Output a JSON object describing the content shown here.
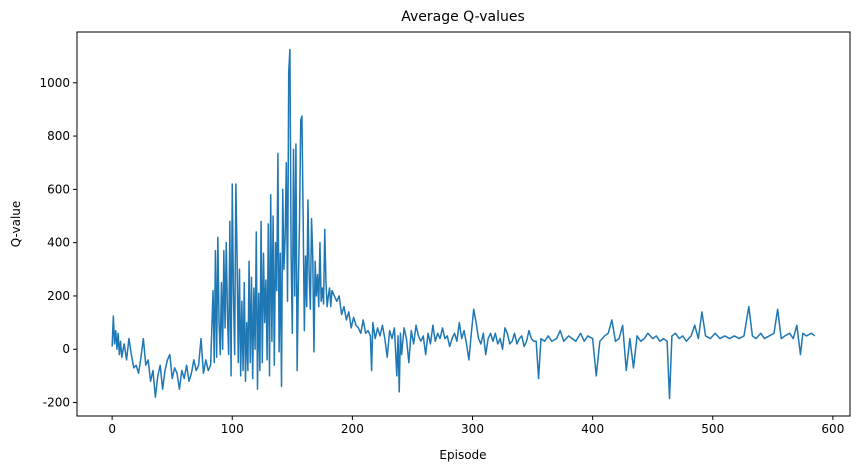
{
  "chart_data": {
    "type": "line",
    "title": "Average Q-values",
    "x_label": "Episode",
    "y_label": "Q-value",
    "x": [
      0,
      1,
      2,
      3,
      4,
      5,
      6,
      7,
      8,
      10,
      12,
      14,
      16,
      18,
      20,
      22,
      24,
      26,
      28,
      30,
      32,
      34,
      36,
      38,
      40,
      42,
      44,
      46,
      48,
      50,
      52,
      54,
      56,
      58,
      60,
      62,
      64,
      66,
      68,
      70,
      72,
      74,
      76,
      78,
      80,
      82,
      84,
      85,
      86,
      87,
      88,
      89,
      90,
      91,
      92,
      93,
      94,
      95,
      96,
      97,
      98,
      99,
      100,
      101,
      102,
      103,
      104,
      105,
      106,
      107,
      108,
      109,
      110,
      111,
      112,
      113,
      114,
      115,
      116,
      117,
      118,
      119,
      120,
      121,
      122,
      123,
      124,
      125,
      126,
      127,
      128,
      129,
      130,
      131,
      132,
      133,
      134,
      135,
      136,
      137,
      138,
      139,
      140,
      141,
      142,
      143,
      144,
      145,
      146,
      147,
      148,
      149,
      150,
      151,
      152,
      153,
      154,
      155,
      156,
      157,
      158,
      159,
      160,
      161,
      162,
      163,
      164,
      165,
      166,
      167,
      168,
      169,
      170,
      171,
      172,
      173,
      174,
      175,
      176,
      177,
      178,
      179,
      180,
      181,
      182,
      183,
      185,
      187,
      189,
      191,
      193,
      195,
      197,
      199,
      201,
      203,
      205,
      207,
      209,
      211,
      213,
      215,
      216,
      217,
      219,
      221,
      223,
      225,
      227,
      229,
      231,
      233,
      235,
      237,
      238,
      239,
      240,
      241,
      243,
      245,
      247,
      249,
      251,
      253,
      255,
      257,
      259,
      261,
      263,
      265,
      267,
      269,
      271,
      273,
      275,
      277,
      279,
      281,
      283,
      285,
      287,
      289,
      291,
      293,
      295,
      297,
      299,
      301,
      303,
      305,
      307,
      309,
      311,
      313,
      315,
      317,
      319,
      321,
      323,
      325,
      327,
      329,
      331,
      333,
      335,
      337,
      339,
      341,
      343,
      345,
      347,
      349,
      351,
      353,
      355,
      357,
      360,
      363,
      366,
      370,
      373,
      376,
      380,
      383,
      386,
      390,
      393,
      396,
      400,
      403,
      406,
      410,
      413,
      416,
      419,
      422,
      425,
      428,
      431,
      434,
      437,
      440,
      443,
      446,
      450,
      453,
      456,
      459,
      462,
      464,
      466,
      469,
      472,
      475,
      478,
      482,
      485,
      488,
      491,
      494,
      498,
      502,
      506,
      510,
      514,
      518,
      522,
      526,
      530,
      533,
      536,
      540,
      543,
      547,
      551,
      554,
      557,
      560,
      564,
      567,
      570,
      573,
      575,
      578,
      582,
      585
    ],
    "series": [
      {
        "name": "Average Q-value",
        "color": "#1f77b4",
        "values": [
          10,
          125,
          20,
          70,
          0,
          60,
          -20,
          30,
          -30,
          20,
          -40,
          40,
          -20,
          -70,
          -60,
          -90,
          -30,
          40,
          -60,
          -40,
          -120,
          -80,
          -180,
          -100,
          -60,
          -150,
          -80,
          -40,
          -20,
          -110,
          -70,
          -90,
          -150,
          -80,
          -110,
          -60,
          -120,
          -90,
          -40,
          -80,
          -60,
          40,
          -90,
          -40,
          -80,
          -60,
          220,
          -50,
          370,
          -30,
          420,
          100,
          -20,
          250,
          0,
          370,
          80,
          400,
          130,
          -20,
          480,
          -100,
          620,
          200,
          -20,
          620,
          350,
          -50,
          300,
          -100,
          180,
          -80,
          250,
          -120,
          100,
          -80,
          330,
          -50,
          270,
          -110,
          230,
          0,
          440,
          -150,
          210,
          -80,
          480,
          -50,
          360,
          100,
          260,
          -40,
          470,
          -100,
          580,
          30,
          500,
          -60,
          400,
          220,
          735,
          -10,
          360,
          -140,
          600,
          300,
          420,
          700,
          180,
          1040,
          1125,
          350,
          60,
          750,
          200,
          770,
          -80,
          240,
          480,
          860,
          875,
          500,
          70,
          350,
          160,
          560,
          280,
          150,
          490,
          350,
          -10,
          330,
          200,
          280,
          160,
          400,
          180,
          230,
          170,
          450,
          250,
          160,
          200,
          230,
          160,
          220,
          200,
          180,
          200,
          130,
          160,
          110,
          140,
          80,
          120,
          90,
          80,
          60,
          110,
          60,
          70,
          50,
          -80,
          100,
          40,
          80,
          50,
          90,
          40,
          -30,
          70,
          40,
          80,
          -100,
          50,
          -160,
          60,
          -20,
          80,
          40,
          -50,
          70,
          20,
          90,
          50,
          30,
          50,
          -20,
          60,
          20,
          90,
          30,
          60,
          40,
          80,
          40,
          50,
          10,
          40,
          60,
          30,
          100,
          40,
          70,
          20,
          -40,
          60,
          150,
          100,
          40,
          20,
          60,
          -20,
          40,
          60,
          30,
          60,
          20,
          40,
          0,
          80,
          60,
          20,
          30,
          60,
          20,
          40,
          50,
          10,
          30,
          70,
          40,
          30,
          30,
          -110,
          40,
          30,
          50,
          30,
          40,
          70,
          30,
          50,
          40,
          30,
          60,
          30,
          50,
          40,
          -100,
          30,
          50,
          60,
          110,
          30,
          40,
          90,
          -80,
          40,
          -70,
          50,
          30,
          40,
          60,
          40,
          50,
          30,
          40,
          30,
          -185,
          50,
          60,
          40,
          50,
          30,
          50,
          90,
          40,
          140,
          50,
          40,
          60,
          40,
          50,
          40,
          50,
          40,
          50,
          160,
          50,
          40,
          60,
          40,
          50,
          60,
          150,
          40,
          50,
          60,
          40,
          90,
          -20,
          60,
          50,
          60,
          50
        ]
      }
    ],
    "xlim": [
      -29.25,
      614.25
    ],
    "xticks": [
      0,
      100,
      200,
      300,
      400,
      500,
      600
    ],
    "ylim": [
      -250.5,
      1190.5
    ],
    "yticks": [
      -200,
      0,
      200,
      400,
      600,
      800,
      1000
    ]
  }
}
